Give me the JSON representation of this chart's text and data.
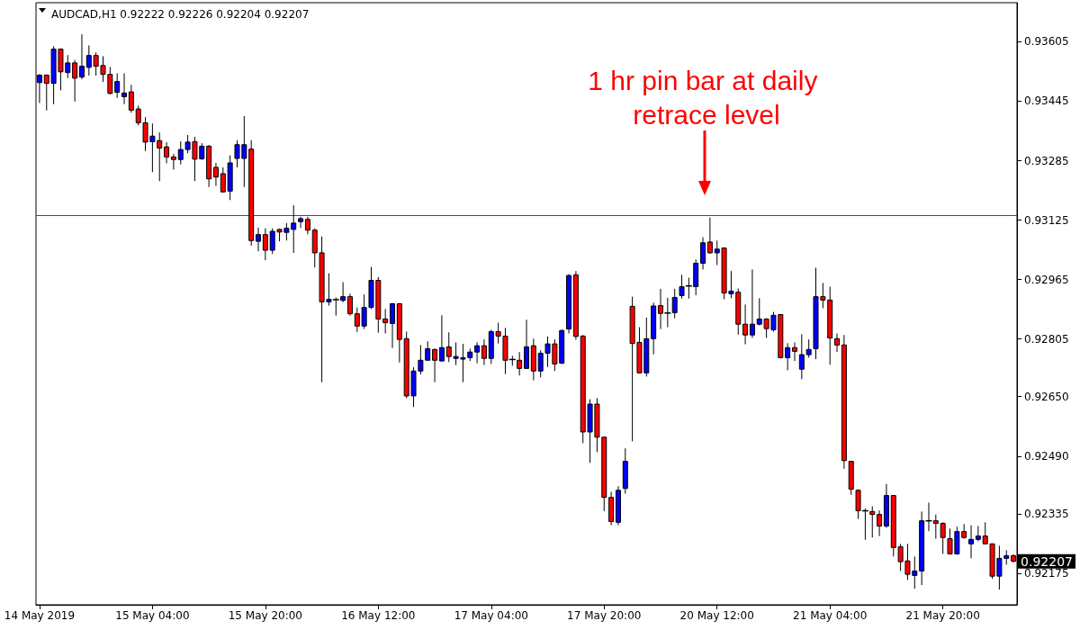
{
  "chart_data": {
    "type": "candlestick",
    "title": "AUDCAD,H1 0.92222 0.92226 0.92204 0.92207",
    "categories": [
      "14 May 2019",
      null,
      null,
      null,
      null,
      null,
      null,
      null,
      null,
      null,
      null,
      null,
      null,
      null,
      null,
      null,
      "15 May 04:00",
      null,
      null,
      null,
      null,
      null,
      null,
      null,
      null,
      null,
      null,
      null,
      null,
      null,
      null,
      null,
      "15 May 20:00",
      null,
      null,
      null,
      null,
      null,
      null,
      null,
      null,
      null,
      null,
      null,
      null,
      null,
      null,
      null,
      "16 May 12:00",
      null,
      null,
      null,
      null,
      null,
      null,
      null,
      null,
      null,
      null,
      null,
      null,
      null,
      null,
      null,
      "17 May 04:00",
      null,
      null,
      null,
      null,
      null,
      null,
      null,
      null,
      null,
      null,
      null,
      null,
      null,
      null,
      null,
      "17 May 20:00",
      null,
      null,
      null,
      null,
      null,
      null,
      null,
      null,
      null,
      null,
      null,
      null,
      null,
      null,
      null,
      "20 May 12:00",
      null,
      null,
      null,
      null,
      null,
      null,
      null,
      null,
      null,
      null,
      null,
      null,
      null,
      null,
      null,
      "21 May 04:00",
      null,
      null,
      null,
      null,
      null,
      null,
      null,
      null,
      null,
      null,
      null,
      null,
      null,
      null,
      null,
      "21 May 20:00",
      null,
      null,
      null,
      null,
      null,
      null,
      null,
      null,
      null,
      null
    ],
    "ohlc": [
      [
        0.93495,
        0.93518,
        0.9344,
        0.93515
      ],
      [
        0.93515,
        0.93517,
        0.9342,
        0.93493
      ],
      [
        0.93493,
        0.93593,
        0.93437,
        0.93585
      ],
      [
        0.93585,
        0.93587,
        0.93474,
        0.93524
      ],
      [
        0.93522,
        0.93569,
        0.93507,
        0.93548
      ],
      [
        0.93548,
        0.93556,
        0.93444,
        0.93507
      ],
      [
        0.9351,
        0.93625,
        0.93504,
        0.93539
      ],
      [
        0.93536,
        0.93595,
        0.93514,
        0.93568
      ],
      [
        0.93568,
        0.93576,
        0.93514,
        0.93539
      ],
      [
        0.93541,
        0.93566,
        0.93497,
        0.93517
      ],
      [
        0.93517,
        0.93537,
        0.93463,
        0.93466
      ],
      [
        0.93469,
        0.9352,
        0.93454,
        0.93498
      ],
      [
        0.93457,
        0.9352,
        0.93437,
        0.93467
      ],
      [
        0.9347,
        0.93489,
        0.93414,
        0.93421
      ],
      [
        0.93424,
        0.93433,
        0.9338,
        0.93387
      ],
      [
        0.93387,
        0.93402,
        0.93311,
        0.93335
      ],
      [
        0.93336,
        0.93385,
        0.93254,
        0.93351
      ],
      [
        0.93339,
        0.93361,
        0.9323,
        0.93319
      ],
      [
        0.93322,
        0.93335,
        0.93278,
        0.93295
      ],
      [
        0.93295,
        0.93303,
        0.93261,
        0.93288
      ],
      [
        0.93288,
        0.93337,
        0.93275,
        0.93315
      ],
      [
        0.93315,
        0.93354,
        0.93305,
        0.93335
      ],
      [
        0.93336,
        0.93349,
        0.9323,
        0.93289
      ],
      [
        0.9329,
        0.93332,
        0.93287,
        0.93324
      ],
      [
        0.93324,
        0.93327,
        0.93214,
        0.93236
      ],
      [
        0.93267,
        0.93279,
        0.93217,
        0.93241
      ],
      [
        0.9325,
        0.93267,
        0.93199,
        0.93201
      ],
      [
        0.93203,
        0.93299,
        0.93179,
        0.93279
      ],
      [
        0.93291,
        0.9334,
        0.93267,
        0.93328
      ],
      [
        0.93291,
        0.93405,
        0.93214,
        0.93328
      ],
      [
        0.93316,
        0.9334,
        0.93056,
        0.9307
      ],
      [
        0.93068,
        0.93105,
        0.93041,
        0.93086
      ],
      [
        0.93086,
        0.93103,
        0.93017,
        0.93044
      ],
      [
        0.93044,
        0.93103,
        0.93034,
        0.93095
      ],
      [
        0.931,
        0.93101,
        0.93068,
        0.93093
      ],
      [
        0.93092,
        0.93117,
        0.9307,
        0.93103
      ],
      [
        0.931,
        0.93165,
        0.93037,
        0.93117
      ],
      [
        0.93121,
        0.93134,
        0.93104,
        0.93129
      ],
      [
        0.93127,
        0.93134,
        0.93087,
        0.93098
      ],
      [
        0.93098,
        0.93103,
        0.92998,
        0.93037
      ],
      [
        0.93037,
        0.93081,
        0.92689,
        0.92905
      ],
      [
        0.92905,
        0.92982,
        0.92895,
        0.92912
      ],
      [
        0.92911,
        0.92917,
        0.92868,
        0.92911
      ],
      [
        0.92909,
        0.92958,
        0.92904,
        0.92919
      ],
      [
        0.92919,
        0.92927,
        0.92868,
        0.92873
      ],
      [
        0.92873,
        0.9289,
        0.92824,
        0.9284
      ],
      [
        0.9284,
        0.92925,
        0.92832,
        0.9289
      ],
      [
        0.9289,
        0.92999,
        0.92886,
        0.92963
      ],
      [
        0.92963,
        0.92972,
        0.92822,
        0.92859
      ],
      [
        0.92859,
        0.92886,
        0.9282,
        0.92849
      ],
      [
        0.92847,
        0.92902,
        0.92781,
        0.929
      ],
      [
        0.929,
        0.92902,
        0.92742,
        0.92804
      ],
      [
        0.92806,
        0.92825,
        0.92646,
        0.92652
      ],
      [
        0.92652,
        0.92729,
        0.92622,
        0.92719
      ],
      [
        0.92719,
        0.92789,
        0.9271,
        0.92748
      ],
      [
        0.92748,
        0.92799,
        0.92747,
        0.92779
      ],
      [
        0.92777,
        0.92779,
        0.92689,
        0.92748
      ],
      [
        0.92746,
        0.92869,
        0.92745,
        0.92782
      ],
      [
        0.92784,
        0.92823,
        0.92743,
        0.92758
      ],
      [
        0.92753,
        0.92796,
        0.92735,
        0.92758
      ],
      [
        0.92751,
        0.92792,
        0.92689,
        0.92755
      ],
      [
        0.92755,
        0.92779,
        0.92746,
        0.9277
      ],
      [
        0.9277,
        0.92796,
        0.9274,
        0.92787
      ],
      [
        0.92787,
        0.92804,
        0.92735,
        0.92753
      ],
      [
        0.92753,
        0.9283,
        0.92738,
        0.92825
      ],
      [
        0.92825,
        0.92849,
        0.92793,
        0.92813
      ],
      [
        0.92813,
        0.92835,
        0.92711,
        0.92748
      ],
      [
        0.9275,
        0.9276,
        0.92733,
        0.9275
      ],
      [
        0.92748,
        0.9277,
        0.92707,
        0.92726
      ],
      [
        0.92726,
        0.92857,
        0.92725,
        0.92784
      ],
      [
        0.92787,
        0.92806,
        0.92694,
        0.92719
      ],
      [
        0.92719,
        0.92775,
        0.92702,
        0.92767
      ],
      [
        0.92767,
        0.92812,
        0.9273,
        0.92792
      ],
      [
        0.92792,
        0.92804,
        0.92719,
        0.92738
      ],
      [
        0.9274,
        0.92831,
        0.92738,
        0.92828
      ],
      [
        0.92832,
        0.9298,
        0.9282,
        0.92976
      ],
      [
        0.92978,
        0.92988,
        0.92803,
        0.92812
      ],
      [
        0.92813,
        0.92816,
        0.92525,
        0.92555
      ],
      [
        0.92555,
        0.92643,
        0.92472,
        0.9263
      ],
      [
        0.9263,
        0.92646,
        0.92501,
        0.92541
      ],
      [
        0.92541,
        0.92542,
        0.92342,
        0.92379
      ],
      [
        0.92379,
        0.92394,
        0.92304,
        0.92314
      ],
      [
        0.92312,
        0.92409,
        0.92304,
        0.92398
      ],
      [
        0.92403,
        0.92511,
        0.92389,
        0.92476
      ],
      [
        0.92893,
        0.92919,
        0.9253,
        0.92793
      ],
      [
        0.92796,
        0.92837,
        0.92713,
        0.92714
      ],
      [
        0.92714,
        0.92863,
        0.92704,
        0.92806
      ],
      [
        0.92806,
        0.92903,
        0.92764,
        0.92894
      ],
      [
        0.92895,
        0.9294,
        0.92832,
        0.92874
      ],
      [
        0.92875,
        0.92916,
        0.92837,
        0.92875
      ],
      [
        0.92876,
        0.9294,
        0.92861,
        0.92917
      ],
      [
        0.92922,
        0.92978,
        0.92914,
        0.92946
      ],
      [
        0.92948,
        0.9297,
        0.92914,
        0.92948
      ],
      [
        0.92946,
        0.93019,
        0.92923,
        0.93009
      ],
      [
        0.93009,
        0.93079,
        0.92992,
        0.93064
      ],
      [
        0.93066,
        0.93132,
        0.93035,
        0.93037
      ],
      [
        0.93037,
        0.9307,
        0.93004,
        0.93047
      ],
      [
        0.9305,
        0.93051,
        0.92912,
        0.92929
      ],
      [
        0.92927,
        0.92988,
        0.92915,
        0.92934
      ],
      [
        0.92931,
        0.92941,
        0.92817,
        0.92845
      ],
      [
        0.92845,
        0.92898,
        0.92791,
        0.92816
      ],
      [
        0.92816,
        0.92992,
        0.92808,
        0.92845
      ],
      [
        0.92845,
        0.92915,
        0.92842,
        0.92859
      ],
      [
        0.92859,
        0.92861,
        0.92808,
        0.92833
      ],
      [
        0.9283,
        0.92878,
        0.92825,
        0.92869
      ],
      [
        0.92871,
        0.92872,
        0.92753,
        0.92755
      ],
      [
        0.92755,
        0.92794,
        0.92721,
        0.92782
      ],
      [
        0.92782,
        0.92796,
        0.92746,
        0.92772
      ],
      [
        0.92724,
        0.92818,
        0.92697,
        0.92763
      ],
      [
        0.92763,
        0.92804,
        0.92755,
        0.92777
      ],
      [
        0.92779,
        0.92997,
        0.92751,
        0.92919
      ],
      [
        0.92919,
        0.92956,
        0.92888,
        0.9291
      ],
      [
        0.9291,
        0.92946,
        0.92736,
        0.92808
      ],
      [
        0.92806,
        0.9282,
        0.9277,
        0.92789
      ],
      [
        0.92789,
        0.92816,
        0.92456,
        0.92478
      ],
      [
        0.92476,
        0.92477,
        0.92386,
        0.92401
      ],
      [
        0.92398,
        0.92401,
        0.92321,
        0.92343
      ],
      [
        0.92343,
        0.92349,
        0.92265,
        0.92343
      ],
      [
        0.92341,
        0.92355,
        0.92271,
        0.92333
      ],
      [
        0.92333,
        0.92344,
        0.92275,
        0.92302
      ],
      [
        0.92302,
        0.92415,
        0.92297,
        0.92384
      ],
      [
        0.92384,
        0.92385,
        0.9222,
        0.92244
      ],
      [
        0.92246,
        0.92254,
        0.92181,
        0.92206
      ],
      [
        0.92208,
        0.92254,
        0.92157,
        0.92172
      ],
      [
        0.92169,
        0.9222,
        0.92133,
        0.92181
      ],
      [
        0.92181,
        0.92341,
        0.92143,
        0.92316
      ],
      [
        0.92316,
        0.92365,
        0.92288,
        0.92316
      ],
      [
        0.92316,
        0.92333,
        0.92268,
        0.92309
      ],
      [
        0.92309,
        0.92312,
        0.92227,
        0.92271
      ],
      [
        0.92268,
        0.92295,
        0.92226,
        0.92227
      ],
      [
        0.92227,
        0.923,
        0.92225,
        0.92287
      ],
      [
        0.92287,
        0.92307,
        0.92268,
        0.92271
      ],
      [
        0.92254,
        0.92304,
        0.92215,
        0.92266
      ],
      [
        0.92266,
        0.92302,
        0.92261,
        0.92275
      ],
      [
        0.92275,
        0.92312,
        0.92253,
        0.92254
      ],
      [
        0.92254,
        0.92255,
        0.9216,
        0.92167
      ],
      [
        0.92167,
        0.92249,
        0.92131,
        0.92215
      ],
      [
        0.92215,
        0.92237,
        0.92198,
        0.92222
      ],
      [
        0.92222,
        0.92226,
        0.92204,
        0.92207
      ]
    ],
    "colors": [
      "#0000ff",
      "#ff0000",
      "#0000ff",
      "#ff0000",
      "#0000ff",
      "#ff0000",
      "#0000ff",
      "#0000ff",
      "#ff0000",
      "#ff0000",
      "#ff0000",
      "#0000ff",
      "#0000ff",
      "#ff0000",
      "#ff0000",
      "#ff0000",
      "#0000ff",
      "#ff0000",
      "#ff0000",
      "#ff0000",
      "#0000ff",
      "#0000ff",
      "#ff0000",
      "#0000ff",
      "#ff0000",
      "#ff0000",
      "#ff0000",
      "#0000ff",
      "#0000ff",
      "#0000ff",
      "#ff0000",
      "#0000ff",
      "#ff0000",
      "#0000ff",
      "#ff0000",
      "#0000ff",
      "#0000ff",
      "#0000ff",
      "#ff0000",
      "#ff0000",
      "#ff0000",
      "#0000ff",
      "#000000",
      "#0000ff",
      "#ff0000",
      "#ff0000",
      "#0000ff",
      "#0000ff",
      "#ff0000",
      "#ff0000",
      "#0000ff",
      "#ff0000",
      "#ff0000",
      "#0000ff",
      "#0000ff",
      "#0000ff",
      "#ff0000",
      "#0000ff",
      "#ff0000",
      "#0000ff",
      "#0000ff",
      "#0000ff",
      "#0000ff",
      "#ff0000",
      "#0000ff",
      "#ff0000",
      "#ff0000",
      "#000000",
      "#ff0000",
      "#0000ff",
      "#ff0000",
      "#0000ff",
      "#0000ff",
      "#ff0000",
      "#0000ff",
      "#0000ff",
      "#ff0000",
      "#ff0000",
      "#0000ff",
      "#ff0000",
      "#ff0000",
      "#ff0000",
      "#0000ff",
      "#0000ff",
      "#ff0000",
      "#ff0000",
      "#0000ff",
      "#0000ff",
      "#ff0000",
      "#000000",
      "#0000ff",
      "#0000ff",
      "#000000",
      "#0000ff",
      "#0000ff",
      "#ff0000",
      "#0000ff",
      "#ff0000",
      "#0000ff",
      "#ff0000",
      "#ff0000",
      "#0000ff",
      "#0000ff",
      "#ff0000",
      "#0000ff",
      "#ff0000",
      "#0000ff",
      "#ff0000",
      "#0000ff",
      "#0000ff",
      "#0000ff",
      "#ff0000",
      "#ff0000",
      "#ff0000",
      "#ff0000",
      "#ff0000",
      "#ff0000",
      "#000000",
      "#ff0000",
      "#ff0000",
      "#0000ff",
      "#ff0000",
      "#ff0000",
      "#ff0000",
      "#0000ff",
      "#0000ff",
      "#000000",
      "#ff0000",
      "#ff0000",
      "#ff0000",
      "#0000ff",
      "#ff0000",
      "#0000ff",
      "#0000ff",
      "#ff0000",
      "#ff0000",
      "#0000ff",
      "#0000ff",
      "#ff0000"
    ],
    "ylim": [
      0.9209,
      0.9371
    ],
    "yticks": [
      0.93605,
      0.93445,
      0.93285,
      0.93125,
      0.92965,
      0.92805,
      {
        "value": 0.9265,
        "label": "0.92650"
      },
      {
        "value": 0.9249,
        "label": "0.92490"
      },
      0.92335,
      0.92175
    ],
    "ref_lines": [
      {
        "axis": "y",
        "value": 0.93139,
        "color": "#ff0000",
        "line_style": "solid"
      }
    ],
    "annotations": [
      "1 hr pin bar at daily retrace level",
      "0.92207"
    ]
  }
}
